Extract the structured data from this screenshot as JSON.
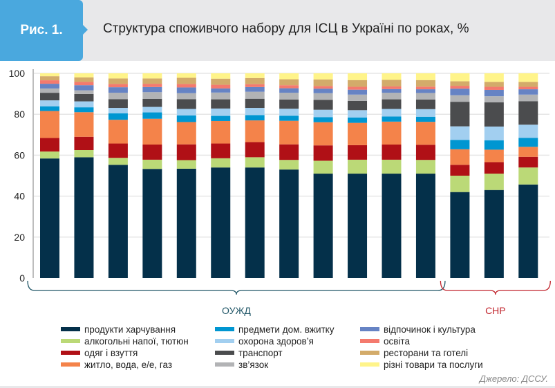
{
  "header": {
    "figure_label": "Рис. 1.",
    "title": "Структура споживчого набору для ІСЦ в Україні по роках, %"
  },
  "source": "Джерело: ДССУ.",
  "chart_data": {
    "type": "bar",
    "stacked": true,
    "title": "Структура споживчого набору для ІСЦ в Україні по роках, %",
    "ylim": [
      0,
      100
    ],
    "yticks": [
      "0",
      "20",
      "40",
      "60",
      "80",
      "100"
    ],
    "grid": true,
    "legend_position": "bottom",
    "groups": [
      {
        "label": "ОУЖД",
        "bars": 12,
        "color": "#1f5566"
      },
      {
        "label": "СНР",
        "bars": 3,
        "color": "#c0222a"
      }
    ],
    "series": [
      {
        "name": "продукти харчування",
        "color": "#04304a",
        "values": [
          58.4,
          59,
          55.3,
          53.3,
          53.4,
          54,
          54,
          53,
          51,
          51,
          51,
          51,
          42,
          43,
          45.7
        ]
      },
      {
        "name": "алкогольні напої, тютюн",
        "color": "#bbd977",
        "values": [
          3.4,
          3.5,
          3.4,
          4.5,
          4.2,
          4.5,
          5,
          4.7,
          6.3,
          6.8,
          6.8,
          6.7,
          8,
          8,
          8.3
        ]
      },
      {
        "name": "одяг і взуття",
        "color": "#b01016",
        "values": [
          6.6,
          6.5,
          7,
          7.4,
          7.7,
          7.2,
          7.4,
          7.6,
          7.5,
          7.1,
          7.4,
          7.4,
          5.3,
          5.6,
          5.2
        ]
      },
      {
        "name": "житло, вода, е/е, газ",
        "color": "#f4834a",
        "values": [
          13.2,
          12,
          11.6,
          12.6,
          10.9,
          11,
          10.6,
          11.5,
          11.3,
          10.9,
          11.2,
          11.2,
          7.6,
          6.1,
          4.9
        ]
      },
      {
        "name": "предмети дом. вжитку",
        "color": "#0096d1",
        "values": [
          2.3,
          2.4,
          3.2,
          3.1,
          3.2,
          2.5,
          2.6,
          2.5,
          2.5,
          2.6,
          2.5,
          2.5,
          4.6,
          4.6,
          4.4
        ]
      },
      {
        "name": "охорона здоров’я",
        "color": "#a2cff0",
        "values": [
          2.9,
          2.9,
          2.6,
          2.7,
          3.2,
          3.6,
          3.5,
          3.4,
          3.6,
          3.6,
          3.7,
          3.7,
          6.6,
          6.7,
          6.4
        ]
      },
      {
        "name": "транспорт",
        "color": "#4b4c4e",
        "values": [
          3.7,
          3.6,
          4.3,
          3.9,
          4.8,
          4.5,
          4.5,
          4.5,
          4.8,
          4.5,
          4.7,
          4.7,
          12,
          11.8,
          11.5
        ]
      },
      {
        "name": "зв’язок",
        "color": "#b2b3b5",
        "values": [
          2.1,
          1.8,
          3.1,
          3.3,
          2.9,
          3.3,
          3.4,
          3.3,
          3.3,
          3.1,
          3.2,
          3.2,
          3.2,
          3,
          3.2
        ]
      },
      {
        "name": "відпочинок і культура",
        "color": "#6683c4",
        "values": [
          2.3,
          2.5,
          2.7,
          2.5,
          2.8,
          2,
          2.3,
          2.2,
          2.2,
          2.4,
          1.8,
          1.8,
          3.2,
          3.1,
          2.6
        ]
      },
      {
        "name": "освіта",
        "color": "#f47a6e",
        "values": [
          1.7,
          1.6,
          1.6,
          1.6,
          1.7,
          1.8,
          1.4,
          1.5,
          1.3,
          1.4,
          1.3,
          1.3,
          1.4,
          1.5,
          1.2
        ]
      },
      {
        "name": "ресторани та готелі",
        "color": "#d3ab6a",
        "values": [
          2,
          2.2,
          2.7,
          2.6,
          3,
          3,
          3,
          2.9,
          3.2,
          3.3,
          3.2,
          3.2,
          2.2,
          2.4,
          2.4
        ]
      },
      {
        "name": "різні товари та послуги",
        "color": "#fff48a",
        "values": [
          1.4,
          2,
          2.5,
          2.5,
          2.2,
          2.6,
          2.3,
          2.9,
          3,
          3.3,
          3.2,
          3.3,
          3.9,
          4.2,
          4.2
        ]
      }
    ]
  }
}
